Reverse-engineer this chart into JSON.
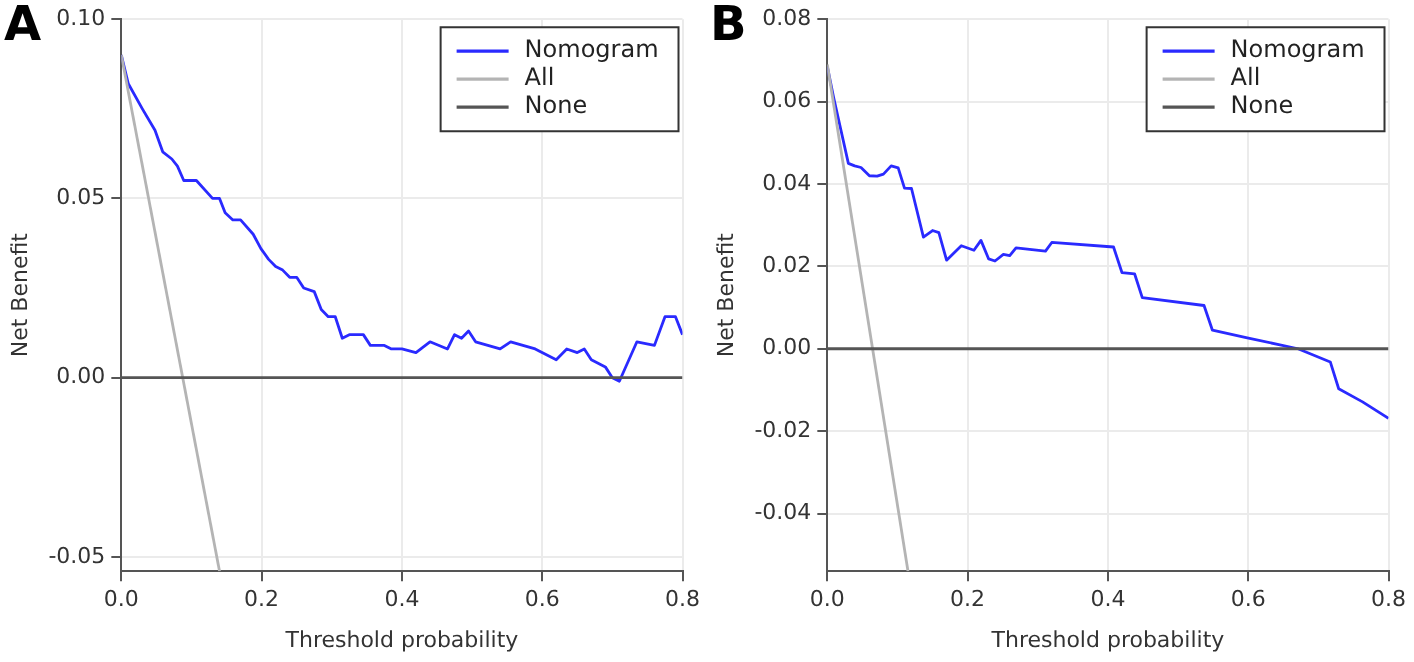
{
  "chart_data": [
    {
      "type": "line",
      "title": "A",
      "xlabel": "Threshold probability",
      "ylabel": "Net Benefit",
      "xlim": [
        0,
        0.8
      ],
      "ylim": [
        -0.054,
        0.1
      ],
      "xticks": [
        {
          "value": 0,
          "label": "0.0"
        },
        {
          "value": 0.2,
          "label": "0.2"
        },
        {
          "value": 0.4,
          "label": "0.4"
        },
        {
          "value": 0.6,
          "label": "0.6"
        },
        {
          "value": 0.8,
          "label": "0.8"
        }
      ],
      "yticks": [
        {
          "value": -0.05,
          "label": "-0.05"
        },
        {
          "value": 0,
          "label": "0.00"
        },
        {
          "value": 0.05,
          "label": "0.05"
        },
        {
          "value": 0.1,
          "label": "0.10"
        }
      ],
      "grid": true,
      "legend": "top right",
      "series": [
        {
          "name": "Nomogram",
          "color": "#2a2aff",
          "x": [
            0,
            0.01,
            0.03,
            0.048,
            0.059,
            0.072,
            0.08,
            0.089,
            0.107,
            0.13,
            0.14,
            0.148,
            0.159,
            0.17,
            0.188,
            0.199,
            0.21,
            0.22,
            0.23,
            0.24,
            0.25,
            0.26,
            0.275,
            0.285,
            0.295,
            0.305,
            0.315,
            0.325,
            0.345,
            0.355,
            0.375,
            0.385,
            0.4,
            0.42,
            0.44,
            0.465,
            0.475,
            0.485,
            0.495,
            0.505,
            0.54,
            0.555,
            0.59,
            0.62,
            0.635,
            0.65,
            0.66,
            0.67,
            0.69,
            0.7,
            0.71,
            0.735,
            0.76,
            0.775,
            0.79,
            0.8
          ],
          "values": [
            0.09,
            0.082,
            0.075,
            0.069,
            0.063,
            0.061,
            0.059,
            0.055,
            0.055,
            0.05,
            0.05,
            0.046,
            0.044,
            0.044,
            0.04,
            0.036,
            0.033,
            0.031,
            0.03,
            0.028,
            0.028,
            0.025,
            0.024,
            0.019,
            0.017,
            0.017,
            0.011,
            0.012,
            0.012,
            0.009,
            0.009,
            0.008,
            0.008,
            0.007,
            0.01,
            0.008,
            0.012,
            0.011,
            0.013,
            0.01,
            0.008,
            0.01,
            0.008,
            0.005,
            0.008,
            0.007,
            0.008,
            0.005,
            0.003,
            0.0,
            -0.001,
            0.01,
            0.009,
            0.017,
            0.017,
            0.012
          ]
        },
        {
          "name": "All",
          "color": "#b4b4b4",
          "x": [
            0,
            0.14
          ],
          "values": [
            0.09,
            -0.054
          ]
        },
        {
          "name": "None",
          "color": "#555555",
          "x": [
            0,
            0.8
          ],
          "values": [
            0,
            0
          ]
        }
      ]
    },
    {
      "type": "line",
      "title": "B",
      "xlabel": "Threshold probability",
      "ylabel": "Net Benefit",
      "xlim": [
        0,
        0.8
      ],
      "ylim": [
        -0.054,
        0.08
      ],
      "xticks": [
        {
          "value": 0,
          "label": "0.0"
        },
        {
          "value": 0.2,
          "label": "0.2"
        },
        {
          "value": 0.4,
          "label": "0.4"
        },
        {
          "value": 0.6,
          "label": "0.6"
        },
        {
          "value": 0.8,
          "label": "0.8"
        }
      ],
      "yticks": [
        {
          "value": -0.04,
          "label": "-0.04"
        },
        {
          "value": -0.02,
          "label": "-0.02"
        },
        {
          "value": 0,
          "label": "0.00"
        },
        {
          "value": 0.02,
          "label": "0.02"
        },
        {
          "value": 0.04,
          "label": "0.04"
        },
        {
          "value": 0.06,
          "label": "0.06"
        },
        {
          "value": 0.08,
          "label": "0.08"
        }
      ],
      "grid": true,
      "legend": "top right",
      "series": [
        {
          "name": "Nomogram",
          "color": "#2a2aff",
          "x": [
            0,
            0.009,
            0.03,
            0.039,
            0.048,
            0.06,
            0.071,
            0.08,
            0.091,
            0.101,
            0.11,
            0.12,
            0.137,
            0.15,
            0.159,
            0.17,
            0.191,
            0.209,
            0.219,
            0.23,
            0.239,
            0.251,
            0.26,
            0.269,
            0.311,
            0.32,
            0.408,
            0.42,
            0.438,
            0.449,
            0.537,
            0.549,
            0.597,
            0.671,
            0.717,
            0.729,
            0.763,
            0.8
          ],
          "values": [
            0.0685,
            0.061,
            0.045,
            0.0444,
            0.044,
            0.042,
            0.0419,
            0.0424,
            0.0444,
            0.0439,
            0.039,
            0.0389,
            0.0271,
            0.0287,
            0.0282,
            0.0215,
            0.025,
            0.0239,
            0.0263,
            0.0218,
            0.0213,
            0.0229,
            0.0226,
            0.0245,
            0.0237,
            0.0258,
            0.0247,
            0.0185,
            0.0182,
            0.0124,
            0.0105,
            0.0045,
            0.0027,
            0.0,
            -0.0032,
            -0.0097,
            -0.0129,
            -0.0169
          ]
        },
        {
          "name": "All",
          "color": "#b4b4b4",
          "x": [
            0,
            0.115
          ],
          "values": [
            0.069,
            -0.054
          ]
        },
        {
          "name": "None",
          "color": "#555555",
          "x": [
            0,
            0.8
          ],
          "values": [
            0,
            0
          ]
        }
      ]
    }
  ]
}
